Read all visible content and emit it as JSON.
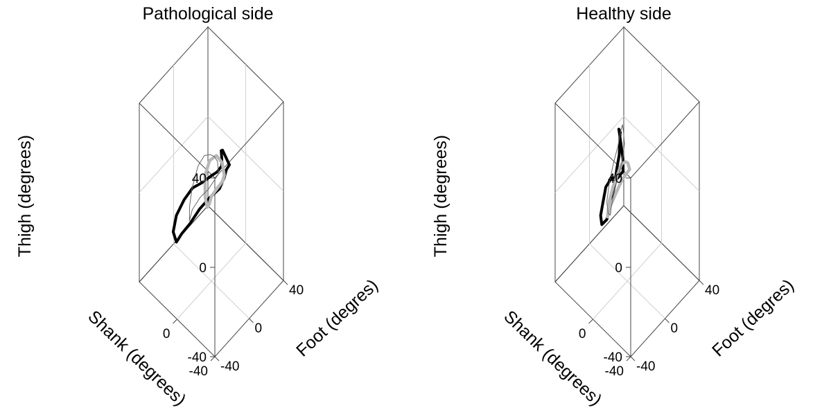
{
  "chart_data": [
    {
      "type": "line3d",
      "title": "Pathological side",
      "xlabel": "Shank  (degrees)",
      "ylabel": "Foot (degres)",
      "zlabel": "Thigh (degrees)",
      "xlim": [
        -40,
        40
      ],
      "ylim": [
        -40,
        40
      ],
      "zlim": [
        -40,
        40
      ],
      "x_ticks": [
        "-40",
        "0"
      ],
      "y_ticks": [
        "-40",
        "0",
        "40"
      ],
      "z_ticks": [
        "-40",
        "0",
        "40"
      ],
      "grid": true,
      "series": [
        {
          "style": "black",
          "x": [
            -20,
            -14,
            -10,
            -12,
            -10,
            -4,
            0,
            6,
            16,
            25,
            32,
            36,
            37,
            35,
            28,
            18,
            8,
            -4,
            -12,
            -18,
            -22,
            -21,
            -20
          ],
          "y": [
            -10,
            -4,
            2,
            6,
            10,
            13,
            15,
            16,
            16,
            14,
            10,
            5,
            0,
            -6,
            -10,
            -12,
            -13,
            -14,
            -14,
            -13,
            -12,
            -11,
            -10
          ],
          "z": [
            28,
            26,
            22,
            16,
            12,
            6,
            0,
            -8,
            -16,
            -24,
            -32,
            -36,
            -38,
            -30,
            -18,
            -6,
            4,
            12,
            18,
            22,
            26,
            28,
            28
          ]
        },
        {
          "style": "gray",
          "x": [
            -10,
            -6,
            2,
            10,
            14,
            12,
            8,
            4,
            0,
            -4,
            -8,
            -10,
            -10
          ],
          "y": [
            4,
            6,
            8,
            9,
            8,
            6,
            4,
            2,
            0,
            0,
            1,
            2,
            4
          ],
          "z": [
            10,
            13,
            12,
            6,
            -2,
            -10,
            -12,
            -8,
            -2,
            2,
            6,
            8,
            10
          ]
        },
        {
          "style": "thin",
          "x": [
            -18,
            -10,
            2,
            16,
            28,
            34,
            36,
            32,
            22,
            8,
            -6,
            -16,
            -22,
            -22,
            -18
          ],
          "y": [
            -16,
            -12,
            -6,
            2,
            8,
            12,
            14,
            10,
            2,
            -4,
            -10,
            -14,
            -16,
            -17,
            -16
          ],
          "z": [
            30,
            26,
            18,
            4,
            -14,
            -26,
            -34,
            -30,
            -18,
            -4,
            8,
            18,
            24,
            30,
            30
          ]
        }
      ]
    },
    {
      "type": "line3d",
      "title": "Healthy side",
      "xlabel": "Shank  (degrees)",
      "ylabel": "Foot (degres)",
      "zlabel": "Thigh (degrees)",
      "xlim": [
        -40,
        40
      ],
      "ylim": [
        -40,
        40
      ],
      "zlim": [
        -40,
        40
      ],
      "x_ticks": [
        "-40",
        "0"
      ],
      "y_ticks": [
        "-40",
        "0",
        "40"
      ],
      "z_ticks": [
        "-40",
        "0",
        "40"
      ],
      "grid": true,
      "series": [
        {
          "style": "black",
          "x": [
            -2,
            0,
            4,
            8,
            14,
            22,
            30,
            36,
            38,
            36,
            30,
            20,
            10,
            0,
            -8,
            -12,
            -10,
            -6,
            -4,
            -2
          ],
          "y": [
            -12,
            -8,
            -4,
            0,
            6,
            12,
            18,
            20,
            18,
            10,
            2,
            -6,
            -14,
            -18,
            -20,
            -18,
            -16,
            -14,
            -13,
            -12
          ],
          "z": [
            34,
            30,
            26,
            18,
            8,
            -4,
            -18,
            -30,
            -36,
            -34,
            -24,
            -10,
            4,
            14,
            18,
            22,
            26,
            30,
            32,
            34
          ]
        },
        {
          "style": "gray",
          "x": [
            -6,
            -2,
            6,
            14,
            22,
            28,
            30,
            26,
            18,
            8,
            0,
            -6,
            -8,
            -6
          ],
          "y": [
            -6,
            -4,
            0,
            4,
            8,
            10,
            10,
            6,
            0,
            -4,
            -6,
            -6,
            -6,
            -6
          ],
          "z": [
            18,
            16,
            10,
            0,
            -10,
            -20,
            -28,
            -24,
            -14,
            -2,
            8,
            14,
            16,
            18
          ]
        },
        {
          "style": "thin",
          "x": [
            -4,
            2,
            10,
            20,
            30,
            38,
            40,
            36,
            26,
            14,
            2,
            -6,
            -8,
            -6,
            -4
          ],
          "y": [
            -10,
            -6,
            0,
            6,
            12,
            18,
            22,
            20,
            10,
            0,
            -8,
            -12,
            -12,
            -11,
            -10
          ],
          "z": [
            36,
            28,
            16,
            2,
            -14,
            -28,
            -36,
            -34,
            -22,
            -6,
            10,
            22,
            30,
            34,
            36
          ]
        }
      ]
    }
  ]
}
